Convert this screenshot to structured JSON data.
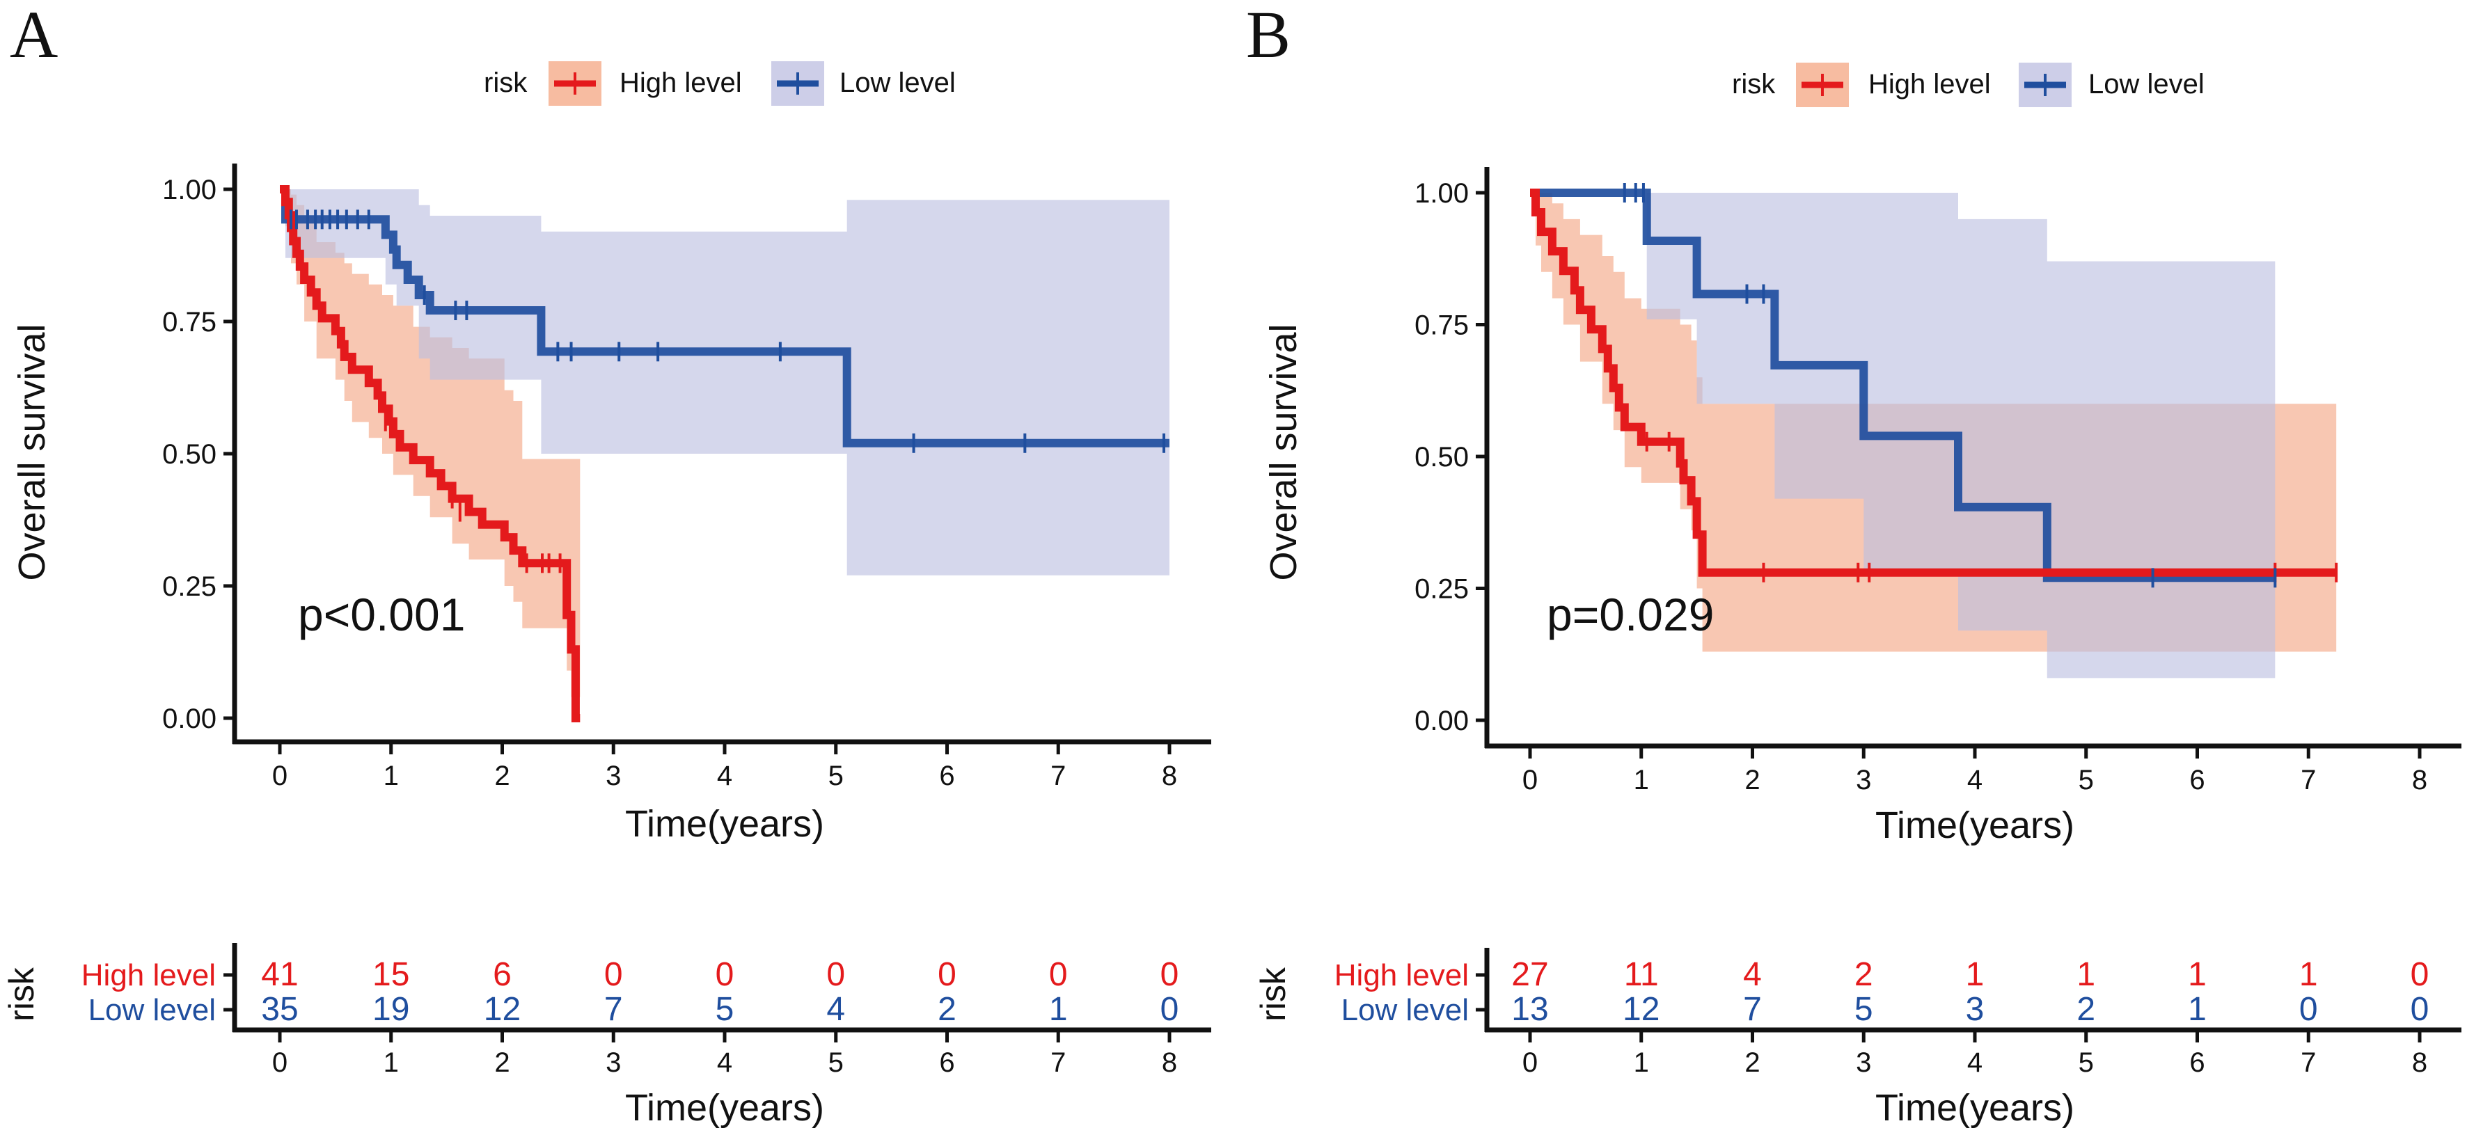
{
  "chart_data": [
    {
      "type": "kaplan-meier",
      "panel_label": "A",
      "legend_title": "risk",
      "xlabel": "Time(years)",
      "ylabel": "Overall survival",
      "xlim": [
        0,
        8
      ],
      "ylim": [
        0,
        1
      ],
      "x_ticks": [
        "0",
        "1",
        "2",
        "3",
        "4",
        "5",
        "6",
        "7",
        "8"
      ],
      "y_ticks": [
        "0.00",
        "0.25",
        "0.50",
        "0.75",
        "1.00"
      ],
      "p_value": "p<0.001",
      "series": [
        {
          "name": "High level",
          "color": "#e41a1c",
          "band_color": "#f4a582",
          "steps": [
            [
              0,
              1.0
            ],
            [
              0.05,
              0.976
            ],
            [
              0.08,
              0.951
            ],
            [
              0.1,
              0.927
            ],
            [
              0.12,
              0.902
            ],
            [
              0.15,
              0.878
            ],
            [
              0.18,
              0.854
            ],
            [
              0.22,
              0.829
            ],
            [
              0.28,
              0.805
            ],
            [
              0.33,
              0.78
            ],
            [
              0.38,
              0.756
            ],
            [
              0.5,
              0.732
            ],
            [
              0.55,
              0.707
            ],
            [
              0.58,
              0.683
            ],
            [
              0.65,
              0.659
            ],
            [
              0.8,
              0.634
            ],
            [
              0.88,
              0.61
            ],
            [
              0.92,
              0.585
            ],
            [
              0.98,
              0.561
            ],
            [
              1.02,
              0.537
            ],
            [
              1.08,
              0.512
            ],
            [
              1.2,
              0.488
            ],
            [
              1.35,
              0.463
            ],
            [
              1.45,
              0.439
            ],
            [
              1.55,
              0.415
            ],
            [
              1.7,
              0.39
            ],
            [
              1.82,
              0.366
            ],
            [
              2.02,
              0.342
            ],
            [
              2.1,
              0.317
            ],
            [
              2.18,
              0.293
            ],
            [
              2.58,
              0.195
            ],
            [
              2.62,
              0.13
            ],
            [
              2.66,
              0.0
            ],
            [
              2.7,
              0.0
            ]
          ],
          "band": [
            [
              0,
              1.0,
              1.0
            ],
            [
              0.05,
              1.0,
              0.93
            ],
            [
              0.1,
              0.99,
              0.86
            ],
            [
              0.15,
              0.97,
              0.82
            ],
            [
              0.22,
              0.95,
              0.75
            ],
            [
              0.33,
              0.9,
              0.68
            ],
            [
              0.5,
              0.88,
              0.64
            ],
            [
              0.58,
              0.86,
              0.6
            ],
            [
              0.65,
              0.84,
              0.56
            ],
            [
              0.8,
              0.82,
              0.53
            ],
            [
              0.92,
              0.8,
              0.5
            ],
            [
              1.02,
              0.78,
              0.46
            ],
            [
              1.2,
              0.74,
              0.42
            ],
            [
              1.35,
              0.72,
              0.38
            ],
            [
              1.55,
              0.7,
              0.33
            ],
            [
              1.7,
              0.68,
              0.3
            ],
            [
              2.02,
              0.62,
              0.25
            ],
            [
              2.1,
              0.6,
              0.22
            ],
            [
              2.18,
              0.49,
              0.17
            ],
            [
              2.58,
              0.49,
              0.09
            ],
            [
              2.62,
              0.49,
              0.04
            ],
            [
              2.7,
              0.49,
              0.0
            ]
          ],
          "censor": [
            [
              0.95,
              0.561
            ],
            [
              1.55,
              0.415
            ],
            [
              1.62,
              0.39
            ],
            [
              2.22,
              0.293
            ],
            [
              2.36,
              0.293
            ],
            [
              2.42,
              0.293
            ],
            [
              2.52,
              0.293
            ]
          ]
        },
        {
          "name": "Low level",
          "color": "#1f4e9e",
          "band_color": "#bcbee0",
          "steps": [
            [
              0,
              1.0
            ],
            [
              0.05,
              0.943
            ],
            [
              0.95,
              0.914
            ],
            [
              1.02,
              0.886
            ],
            [
              1.05,
              0.857
            ],
            [
              1.15,
              0.829
            ],
            [
              1.25,
              0.8
            ],
            [
              1.35,
              0.771
            ],
            [
              2.35,
              0.693
            ],
            [
              5.1,
              0.52
            ],
            [
              8,
              0.52
            ]
          ],
          "band": [
            [
              0,
              1.0,
              1.0
            ],
            [
              0.05,
              1.0,
              0.87
            ],
            [
              0.95,
              1.0,
              0.82
            ],
            [
              1.05,
              1.0,
              0.78
            ],
            [
              1.25,
              0.97,
              0.68
            ],
            [
              1.35,
              0.95,
              0.64
            ],
            [
              2.35,
              0.92,
              0.5
            ],
            [
              5.1,
              0.98,
              0.27
            ],
            [
              8,
              0.98,
              0.27
            ]
          ],
          "censor": [
            [
              0.1,
              0.943
            ],
            [
              0.15,
              0.943
            ],
            [
              0.25,
              0.943
            ],
            [
              0.32,
              0.943
            ],
            [
              0.38,
              0.943
            ],
            [
              0.45,
              0.943
            ],
            [
              0.52,
              0.943
            ],
            [
              0.6,
              0.943
            ],
            [
              0.7,
              0.943
            ],
            [
              0.8,
              0.943
            ],
            [
              1.3,
              0.8
            ],
            [
              1.58,
              0.771
            ],
            [
              1.68,
              0.771
            ],
            [
              2.5,
              0.693
            ],
            [
              2.62,
              0.693
            ],
            [
              3.05,
              0.693
            ],
            [
              3.4,
              0.693
            ],
            [
              4.5,
              0.693
            ],
            [
              5.7,
              0.52
            ],
            [
              6.7,
              0.52
            ],
            [
              7.95,
              0.52
            ]
          ]
        }
      ],
      "risk_table": {
        "title": "risk",
        "xlabel": "Time(years)",
        "x_ticks": [
          "0",
          "1",
          "2",
          "3",
          "4",
          "5",
          "6",
          "7",
          "8"
        ],
        "rows": [
          {
            "name": "High level",
            "color": "#e41a1c",
            "values": [
              "41",
              "15",
              "6",
              "0",
              "0",
              "0",
              "0",
              "0",
              "0"
            ]
          },
          {
            "name": "Low level",
            "color": "#1f4e9e",
            "values": [
              "35",
              "19",
              "12",
              "7",
              "5",
              "4",
              "2",
              "1",
              "0"
            ]
          }
        ]
      }
    },
    {
      "type": "kaplan-meier",
      "panel_label": "B",
      "legend_title": "risk",
      "xlabel": "Time(years)",
      "ylabel": "Overall survival",
      "xlim": [
        0,
        8
      ],
      "ylim": [
        0,
        1
      ],
      "x_ticks": [
        "0",
        "1",
        "2",
        "3",
        "4",
        "5",
        "6",
        "7",
        "8"
      ],
      "y_ticks": [
        "0.00",
        "0.25",
        "0.50",
        "0.75",
        "1.00"
      ],
      "p_value": "p=0.029",
      "series": [
        {
          "name": "High level",
          "color": "#e41a1c",
          "band_color": "#f4a582",
          "steps": [
            [
              0,
              1.0
            ],
            [
              0.05,
              0.963
            ],
            [
              0.1,
              0.926
            ],
            [
              0.2,
              0.889
            ],
            [
              0.3,
              0.852
            ],
            [
              0.4,
              0.815
            ],
            [
              0.45,
              0.778
            ],
            [
              0.55,
              0.741
            ],
            [
              0.65,
              0.704
            ],
            [
              0.7,
              0.667
            ],
            [
              0.75,
              0.63
            ],
            [
              0.8,
              0.593
            ],
            [
              0.85,
              0.556
            ],
            [
              1.0,
              0.528
            ],
            [
              1.35,
              0.487
            ],
            [
              1.38,
              0.455
            ],
            [
              1.45,
              0.415
            ],
            [
              1.5,
              0.352
            ],
            [
              1.55,
              0.28
            ],
            [
              7.25,
              0.28
            ]
          ],
          "band": [
            [
              0,
              1.0,
              1.0
            ],
            [
              0.05,
              1.0,
              0.9
            ],
            [
              0.1,
              1.0,
              0.85
            ],
            [
              0.2,
              0.98,
              0.8
            ],
            [
              0.3,
              0.95,
              0.75
            ],
            [
              0.45,
              0.92,
              0.68
            ],
            [
              0.65,
              0.88,
              0.6
            ],
            [
              0.75,
              0.85,
              0.55
            ],
            [
              0.85,
              0.8,
              0.48
            ],
            [
              1.0,
              0.78,
              0.45
            ],
            [
              1.35,
              0.75,
              0.4
            ],
            [
              1.45,
              0.72,
              0.36
            ],
            [
              1.5,
              0.65,
              0.25
            ],
            [
              1.55,
              0.6,
              0.13
            ],
            [
              7.25,
              0.6,
              0.13
            ]
          ],
          "censor": [
            [
              1.05,
              0.528
            ],
            [
              1.25,
              0.528
            ],
            [
              2.1,
              0.28
            ],
            [
              2.95,
              0.28
            ],
            [
              3.05,
              0.28
            ],
            [
              6.7,
              0.28
            ],
            [
              7.25,
              0.28
            ]
          ]
        },
        {
          "name": "Low level",
          "color": "#1f4e9e",
          "band_color": "#bcbee0",
          "steps": [
            [
              0,
              1.0
            ],
            [
              1.05,
              0.909
            ],
            [
              1.5,
              0.808
            ],
            [
              2.2,
              0.673
            ],
            [
              3.0,
              0.539
            ],
            [
              3.85,
              0.404
            ],
            [
              4.65,
              0.27
            ],
            [
              6.7,
              0.27
            ]
          ],
          "band": [
            [
              0,
              1.0,
              1.0
            ],
            [
              1.05,
              1.0,
              0.76
            ],
            [
              1.5,
              1.0,
              0.6
            ],
            [
              2.2,
              1.0,
              0.42
            ],
            [
              3.0,
              1.0,
              0.28
            ],
            [
              3.85,
              0.95,
              0.17
            ],
            [
              4.65,
              0.87,
              0.08
            ],
            [
              6.7,
              0.87,
              0.08
            ]
          ],
          "censor": [
            [
              0.85,
              1.0
            ],
            [
              0.95,
              1.0
            ],
            [
              1.02,
              1.0
            ],
            [
              1.95,
              0.808
            ],
            [
              2.1,
              0.808
            ],
            [
              5.6,
              0.27
            ],
            [
              6.7,
              0.27
            ]
          ]
        }
      ],
      "risk_table": {
        "title": "risk",
        "xlabel": "Time(years)",
        "x_ticks": [
          "0",
          "1",
          "2",
          "3",
          "4",
          "5",
          "6",
          "7",
          "8"
        ],
        "rows": [
          {
            "name": "High level",
            "color": "#e41a1c",
            "values": [
              "27",
              "11",
              "4",
              "2",
              "1",
              "1",
              "1",
              "1",
              "0"
            ]
          },
          {
            "name": "Low level",
            "color": "#1f4e9e",
            "values": [
              "13",
              "12",
              "7",
              "5",
              "3",
              "2",
              "1",
              "0",
              "0"
            ]
          }
        ]
      }
    }
  ]
}
